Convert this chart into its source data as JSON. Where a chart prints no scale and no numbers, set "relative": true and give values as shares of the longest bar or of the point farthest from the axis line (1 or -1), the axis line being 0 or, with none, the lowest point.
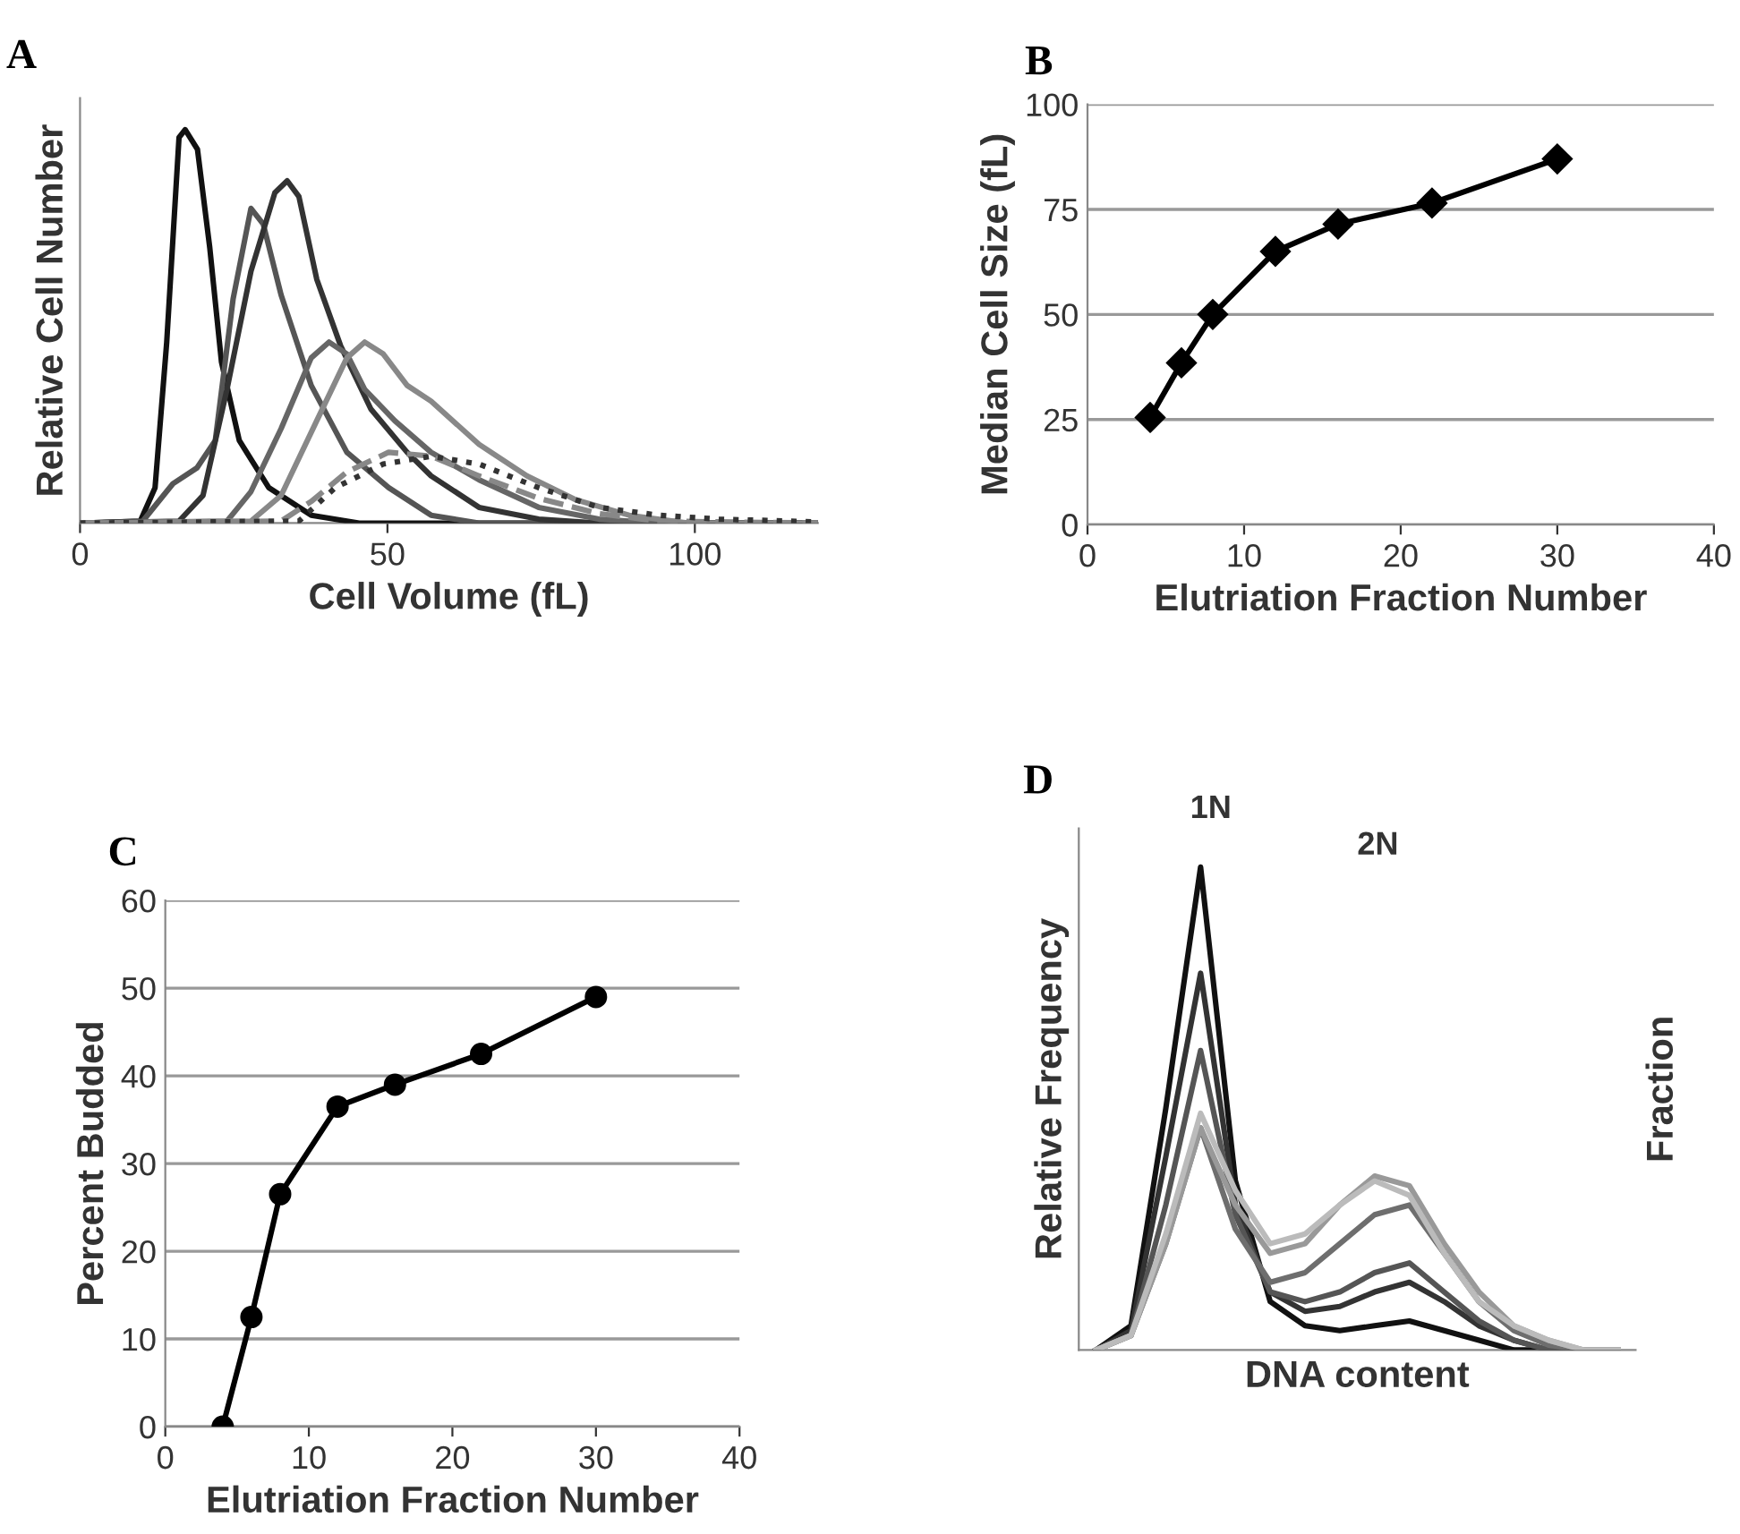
{
  "chart_data": [
    {
      "type": "line",
      "title": "A",
      "xlabel": "Cell Volume (fL)",
      "ylabel": "Relative Cell Number",
      "relative": true,
      "xlim": [
        0,
        120
      ],
      "xticks": [
        0,
        50,
        100
      ],
      "grid": false,
      "legend": false,
      "marker": "none",
      "tick_labels": "x",
      "series": [
        {
          "color": "#111111",
          "x": [
            0,
            9.8,
            12.2,
            14.1,
            16.1,
            17.1,
            19.1,
            21.1,
            23.0,
            25.9,
            30.7,
            37.6,
            45.4,
            120
          ],
          "values": [
            0,
            0.005,
            0.09,
            0.46,
            0.98,
            1.0,
            0.95,
            0.7,
            0.41,
            0.21,
            0.09,
            0.02,
            0,
            0
          ]
        },
        {
          "color": "#555555",
          "x": [
            0,
            10.2,
            15.1,
            19.0,
            22.0,
            24.9,
            27.8,
            29.8,
            32.7,
            37.6,
            43.4,
            50.2,
            57.1,
            64.9,
            120
          ],
          "values": [
            0,
            0.005,
            0.1,
            0.14,
            0.21,
            0.57,
            0.8,
            0.76,
            0.58,
            0.35,
            0.18,
            0.09,
            0.02,
            0,
            0
          ]
        },
        {
          "color": "#333333",
          "x": [
            0,
            16.1,
            20,
            23.9,
            27.8,
            31.7,
            33.7,
            35.6,
            38.5,
            42.4,
            47.3,
            53.2,
            57.1,
            64.9,
            74.6,
            84.4,
            120
          ],
          "values": [
            0,
            0.005,
            0.07,
            0.34,
            0.64,
            0.84,
            0.87,
            0.83,
            0.62,
            0.45,
            0.29,
            0.18,
            0.12,
            0.04,
            0.01,
            0,
            0
          ]
        },
        {
          "color": "#666666",
          "x": [
            0,
            23.9,
            27.8,
            32.7,
            37.6,
            40.5,
            43.4,
            46.3,
            51.2,
            57.1,
            64.9,
            74.6,
            84.4,
            94.1,
            120
          ],
          "values": [
            0,
            0.005,
            0.08,
            0.24,
            0.42,
            0.46,
            0.43,
            0.34,
            0.26,
            0.18,
            0.11,
            0.04,
            0.01,
            0,
            0
          ]
        },
        {
          "color": "#888888",
          "x": [
            0,
            27.8,
            32.7,
            38.5,
            43.4,
            46.3,
            49.3,
            53.2,
            57.1,
            64.9,
            72.7,
            80.5,
            89.3,
            99.0,
            120
          ],
          "values": [
            0,
            0.005,
            0.07,
            0.26,
            0.42,
            0.46,
            0.43,
            0.35,
            0.31,
            0.2,
            0.12,
            0.06,
            0.02,
            0,
            0
          ]
        },
        {
          "color": "#888888",
          "line_style": "dashed",
          "x": [
            0,
            32.7,
            37.6,
            43.4,
            50.2,
            57.1,
            64.9,
            74.6,
            84.4,
            94.1,
            120
          ],
          "values": [
            0,
            0.005,
            0.055,
            0.13,
            0.18,
            0.17,
            0.12,
            0.063,
            0.024,
            0.005,
            0
          ]
        },
        {
          "color": "#333333",
          "line_style": "dotted",
          "x": [
            0,
            35.6,
            41.5,
            49.3,
            57.1,
            64.9,
            74.6,
            84.4,
            94.1,
            103.9,
            120
          ],
          "values": [
            0,
            0.005,
            0.09,
            0.15,
            0.17,
            0.15,
            0.09,
            0.04,
            0.02,
            0.01,
            0.003
          ]
        }
      ]
    },
    {
      "type": "line",
      "title": "B",
      "xlabel": "Elutriation Fraction Number",
      "ylabel": "Median Cell Size (fL)",
      "xlim": [
        0,
        40
      ],
      "xticks": [
        0,
        10,
        20,
        30,
        40
      ],
      "ylim": [
        0,
        100
      ],
      "yticks": [
        0,
        25,
        50,
        75,
        100
      ],
      "grid": "y",
      "legend": false,
      "marker": "diamond",
      "series": [
        {
          "color": "#000000",
          "x": [
            4,
            6,
            8,
            12,
            16,
            22,
            30
          ],
          "values": [
            25.5,
            38.5,
            50,
            65,
            71.5,
            76.5,
            87
          ]
        }
      ]
    },
    {
      "type": "line",
      "title": "C",
      "xlabel": "Elutriation Fraction Number",
      "ylabel": "Percent Budded",
      "xlim": [
        0,
        40
      ],
      "xticks": [
        0,
        10,
        20,
        30,
        40
      ],
      "ylim": [
        0,
        60
      ],
      "yticks": [
        0,
        10,
        20,
        30,
        40,
        50,
        60
      ],
      "grid": "y",
      "legend": false,
      "marker": "circle",
      "series": [
        {
          "color": "#000000",
          "x": [
            4,
            6,
            8,
            12,
            16,
            22,
            30
          ],
          "values": [
            0,
            12.5,
            26.5,
            36.5,
            39,
            42.5,
            49
          ]
        }
      ]
    },
    {
      "type": "line",
      "title": "D",
      "xlabel": "DNA content",
      "ylabel": "Relative Frequency",
      "y2label": "Fraction",
      "relative": true,
      "grid": false,
      "legend": false,
      "tick_labels": false,
      "annotations": [
        "1N",
        "2N"
      ],
      "categories": [
        null,
        null,
        null,
        null,
        null,
        null,
        null,
        null,
        null,
        null,
        null,
        null,
        null,
        null,
        null,
        null
      ],
      "series": [
        {
          "color": "#111111",
          "values": [
            0,
            0.05,
            0.5,
            1,
            0.35,
            0.1,
            0.05,
            0.04,
            0.05,
            0.06,
            0.04,
            0.02,
            0,
            0,
            0,
            0
          ]
        },
        {
          "color": "#333333",
          "values": [
            0,
            0.04,
            0.4,
            0.78,
            0.3,
            0.12,
            0.08,
            0.09,
            0.12,
            0.14,
            0.1,
            0.05,
            0.02,
            0,
            0,
            0
          ]
        },
        {
          "color": "#555555",
          "values": [
            0,
            0.03,
            0.3,
            0.62,
            0.28,
            0.12,
            0.1,
            0.12,
            0.16,
            0.18,
            0.12,
            0.06,
            0.02,
            0,
            0,
            0
          ]
        },
        {
          "color": "#6e6e6e",
          "values": [
            0,
            0.03,
            0.22,
            0.46,
            0.25,
            0.14,
            0.16,
            0.22,
            0.28,
            0.3,
            0.2,
            0.1,
            0.04,
            0.01,
            0,
            0
          ]
        },
        {
          "color": "#999999",
          "values": [
            0,
            0.03,
            0.22,
            0.46,
            0.3,
            0.2,
            0.22,
            0.3,
            0.36,
            0.34,
            0.22,
            0.12,
            0.05,
            0.02,
            0,
            0
          ]
        },
        {
          "color": "#bbbbbb",
          "values": [
            0,
            0.03,
            0.24,
            0.49,
            0.33,
            0.22,
            0.24,
            0.3,
            0.35,
            0.32,
            0.2,
            0.1,
            0.05,
            0.02,
            0,
            0
          ]
        }
      ]
    }
  ]
}
